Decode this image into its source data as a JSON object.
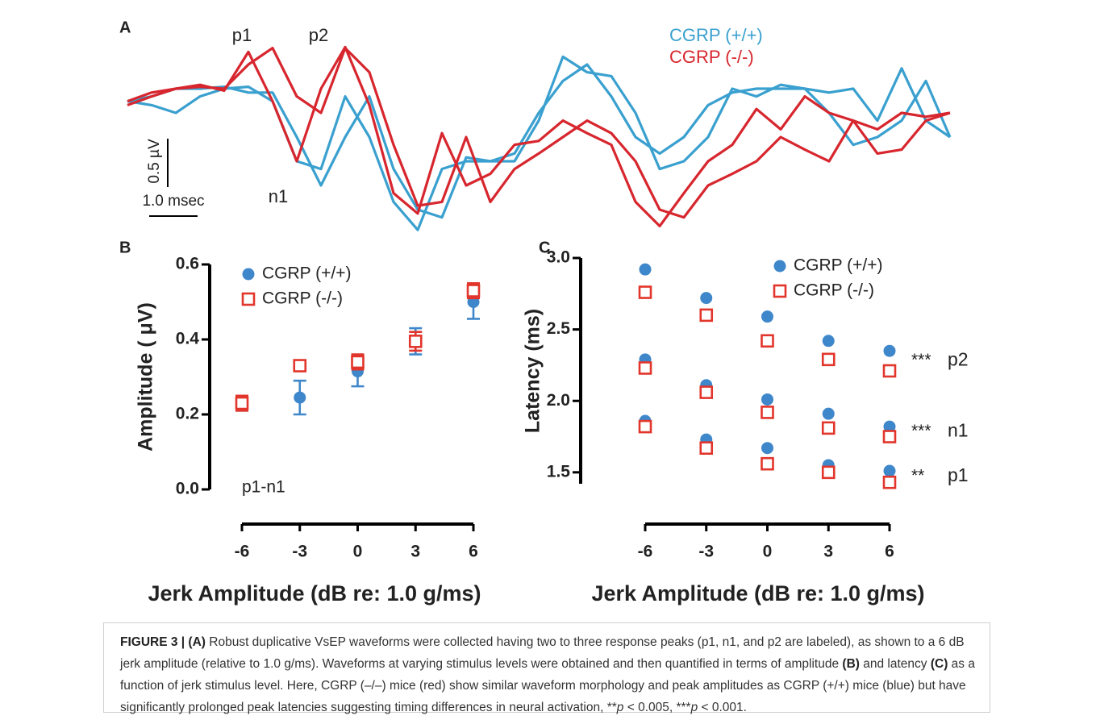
{
  "chart_data": [
    {
      "type": "line",
      "title": "A",
      "x": [
        0,
        0.5,
        1,
        1.5,
        2,
        2.5,
        3,
        3.5,
        4,
        4.5,
        5,
        5.5,
        6,
        6.5,
        7,
        7.5,
        8,
        8.5,
        9,
        9.5,
        10,
        10.5,
        11,
        11.5,
        12,
        12.5,
        13,
        13.5,
        14,
        14.5,
        15,
        15.5,
        16,
        16.5,
        17
      ],
      "xlim": [
        0,
        17.2
      ],
      "ylim": [
        -1.4,
        0.7
      ],
      "series": [
        {
          "name": "CGRP (+/+)",
          "color": "#3aa0cf",
          "traces": [
            [
              -0.03,
              -0.07,
              -0.15,
              0.02,
              0.1,
              0.12,
              -0.03,
              -0.65,
              -0.73,
              0.02,
              -0.4,
              -1.07,
              -1.36,
              -0.73,
              -0.65,
              -0.65,
              -0.57,
              -0.15,
              0.18,
              0.35,
              0.02,
              -0.4,
              -0.57,
              -0.4,
              -0.07,
              0.06,
              0.1,
              0.1,
              0.1,
              -0.15,
              -0.48,
              -0.4,
              -0.23,
              0.18,
              -0.4
            ],
            [
              -0.03,
              0.02,
              0.1,
              0.1,
              0.12,
              0.06,
              0.06,
              -0.4,
              -0.9,
              -0.4,
              0.02,
              -0.73,
              -1.15,
              -1.23,
              -0.61,
              -0.65,
              -0.65,
              -0.23,
              0.43,
              0.27,
              0.23,
              -0.15,
              -0.73,
              -0.65,
              -0.4,
              0.1,
              0.02,
              0.14,
              0.1,
              0.06,
              0.1,
              -0.23,
              0.31,
              -0.23,
              -0.4
            ]
          ]
        },
        {
          "name": "CGRP (-/-)",
          "color": "#d7262e",
          "traces": [
            [
              -0.07,
              0.02,
              0.1,
              0.12,
              0.1,
              0.35,
              0.52,
              0.02,
              -0.15,
              0.52,
              0.27,
              -0.48,
              -1.11,
              -1.07,
              -0.4,
              -1.07,
              -0.73,
              -0.57,
              -0.4,
              -0.23,
              -0.36,
              -0.65,
              -1.15,
              -1.23,
              -0.9,
              -0.78,
              -0.65,
              -0.4,
              -0.53,
              -0.65,
              -0.23,
              -0.57,
              -0.53,
              -0.23,
              -0.15
            ],
            [
              -0.03,
              0.06,
              0.1,
              0.14,
              0.08,
              0.48,
              -0.03,
              -0.65,
              0.1,
              0.53,
              -0.07,
              -0.98,
              -1.19,
              -0.36,
              -0.9,
              -0.78,
              -0.48,
              -0.44,
              -0.23,
              -0.36,
              -0.48,
              -1.07,
              -1.32,
              -0.98,
              -0.65,
              -0.48,
              -0.11,
              -0.32,
              0.02,
              -0.15,
              -0.23,
              -0.32,
              -0.15,
              -0.19,
              -0.15
            ]
          ]
        }
      ],
      "scale_bars": {
        "y": {
          "value": 0.5,
          "label": "0.5 µV"
        },
        "x": {
          "value": 1.0,
          "label": "1.0 msec"
        }
      },
      "annotations": [
        "p1",
        "p2",
        "n1"
      ]
    },
    {
      "type": "errorbar",
      "title": "B",
      "x": [
        -6,
        -3,
        0,
        3,
        6
      ],
      "xlim": [
        -6,
        6
      ],
      "xticks": [
        -6,
        -3,
        0,
        3,
        6
      ],
      "ylim": [
        0,
        0.6
      ],
      "yticks": [
        {
          "value": 0,
          "label": "0.0"
        },
        0.2,
        0.4,
        0.6
      ],
      "ylabel": "Amplitude ( μV)",
      "xlabel": "Jerk Amplitude (dB re: 1.0 g/ms)",
      "annotation": "p1-n1",
      "series": [
        {
          "name": "CGRP (+/+)",
          "color": "#3f87cb",
          "marker": "circle",
          "values": [
            0.23,
            0.245,
            0.315,
            0.395,
            0.5
          ],
          "errors": [
            0.02,
            0.045,
            0.04,
            0.035,
            0.045
          ]
        },
        {
          "name": "CGRP (-/-)",
          "color": "#e2352b",
          "marker": "square",
          "values": [
            0.23,
            0.33,
            0.34,
            0.395,
            0.53
          ],
          "errors": [
            0.02,
            0.005,
            0.02,
            0.025,
            0.02
          ]
        }
      ]
    },
    {
      "type": "scatter",
      "title": "C",
      "x": [
        -6,
        -3,
        0,
        3,
        6
      ],
      "xlim": [
        -6,
        6
      ],
      "xticks": [
        -6,
        -3,
        0,
        3,
        6
      ],
      "ylim": [
        1.42,
        3.0
      ],
      "yticks": [
        1.5,
        {
          "value": 2,
          "label": "2.0"
        },
        2.5,
        {
          "value": 3,
          "label": "3.0"
        }
      ],
      "ylabel": "Latency (ms)",
      "xlabel": "Jerk Amplitude (dB re: 1.0 g/ms)",
      "groups": [
        {
          "label": "p2",
          "significance": "***"
        },
        {
          "label": "n1",
          "significance": "***"
        },
        {
          "label": "p1",
          "significance": "**"
        }
      ],
      "series": [
        {
          "name": "CGRP (+/+)",
          "color": "#3f87cb",
          "marker": "circle",
          "values": [
            [
              2.92,
              2.72,
              2.59,
              2.42,
              2.35
            ],
            [
              2.29,
              2.11,
              2.01,
              1.91,
              1.82
            ],
            [
              1.86,
              1.73,
              1.67,
              1.55,
              1.51
            ]
          ]
        },
        {
          "name": "CGRP (-/-)",
          "color": "#e2352b",
          "marker": "square",
          "values": [
            [
              2.76,
              2.6,
              2.42,
              2.29,
              2.21
            ],
            [
              2.23,
              2.06,
              1.92,
              1.81,
              1.75
            ],
            [
              1.82,
              1.67,
              1.56,
              1.5,
              1.43
            ]
          ]
        }
      ]
    }
  ],
  "caption": {
    "parts": [
      "FIGURE 3 | (A)",
      " Robust duplicative VsEP waveforms were collected having two to three response peaks (p1, n1, and p2 are labeled), as shown to a 6 dB jerk amplitude (relative to 1.0 g/ms). Waveforms at varying stimulus levels were obtained and then quantified in terms of amplitude ",
      "(B)",
      " and latency ",
      "(C)",
      " as a function of jerk stimulus level. Here, CGRP (–/–) mice (red) show similar waveform morphology and peak amplitudes as CGRP (+/+) mice (blue) but have significantly prolonged peak latencies suggesting timing differences in neural activation, **",
      "p",
      " < 0.005, ***",
      "p",
      " < 0.001."
    ]
  }
}
